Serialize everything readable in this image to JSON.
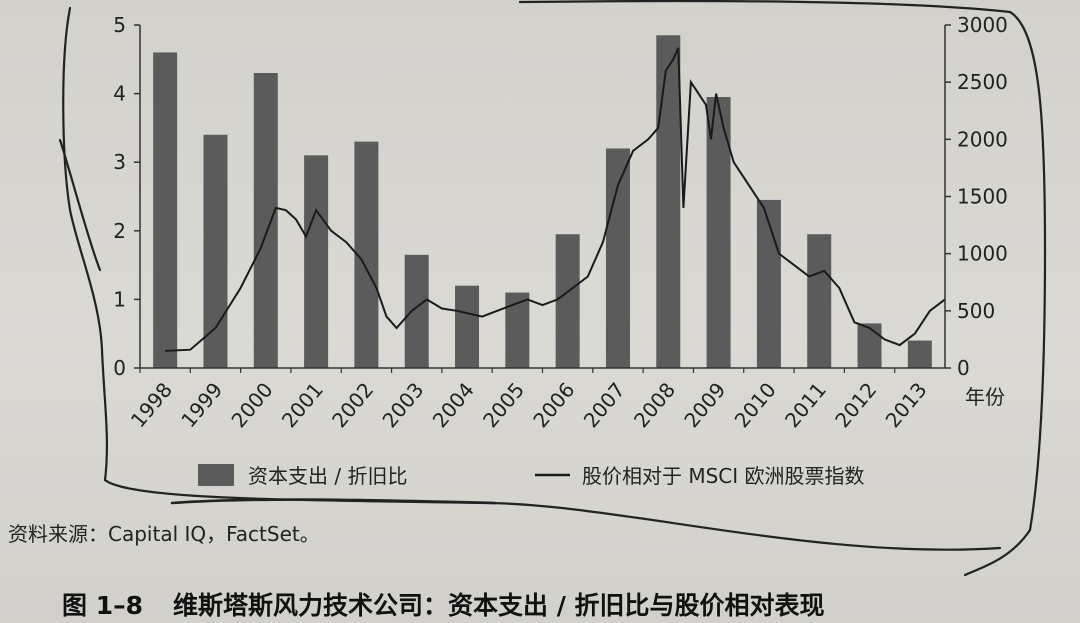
{
  "chart_data": {
    "type": "bar",
    "categories": [
      "1998",
      "1999",
      "2000",
      "2001",
      "2002",
      "2003",
      "2004",
      "2005",
      "2006",
      "2007",
      "2008",
      "2009",
      "2010",
      "2011",
      "2012",
      "2013"
    ],
    "series": [
      {
        "name": "资本支出 / 折旧比",
        "type": "bar",
        "axis": "left",
        "values": [
          4.6,
          3.4,
          4.3,
          3.1,
          3.3,
          1.65,
          1.2,
          1.1,
          1.95,
          3.2,
          4.85,
          3.95,
          2.45,
          1.95,
          0.65,
          0.4
        ]
      },
      {
        "name": "股价相对于 MSCI 欧洲股票指数",
        "type": "line",
        "axis": "right",
        "x": [
          1998.0,
          1998.5,
          1999.0,
          1999.5,
          1999.9,
          2000.2,
          2000.4,
          2000.6,
          2000.8,
          2001.0,
          2001.3,
          2001.6,
          2001.9,
          2002.2,
          2002.4,
          2002.6,
          2002.9,
          2003.2,
          2003.5,
          2003.8,
          2004.0,
          2004.3,
          2004.6,
          2004.9,
          2005.2,
          2005.5,
          2005.8,
          2006.1,
          2006.4,
          2006.7,
          2007.0,
          2007.3,
          2007.6,
          2007.8,
          2007.95,
          2008.1,
          2008.2,
          2008.3,
          2008.45,
          2008.6,
          2008.75,
          2008.85,
          2008.95,
          2009.1,
          2009.3,
          2009.6,
          2009.9,
          2010.2,
          2010.5,
          2010.8,
          2011.1,
          2011.4,
          2011.7,
          2012.0,
          2012.3,
          2012.6,
          2012.9,
          2013.2,
          2013.5
        ],
        "values": [
          150,
          160,
          350,
          700,
          1050,
          1400,
          1380,
          1300,
          1150,
          1380,
          1200,
          1100,
          950,
          700,
          450,
          350,
          500,
          600,
          520,
          500,
          480,
          450,
          500,
          550,
          600,
          550,
          600,
          700,
          800,
          1100,
          1600,
          1900,
          2000,
          2100,
          2600,
          2700,
          2800,
          1400,
          2500,
          2400,
          2300,
          2000,
          2400,
          2100,
          1800,
          1600,
          1400,
          1000,
          900,
          800,
          850,
          700,
          400,
          350,
          250,
          200,
          300,
          500,
          600
        ]
      }
    ],
    "ylim_left": [
      0,
      5
    ],
    "yticks_left": [
      "0",
      "1",
      "2",
      "3",
      "4",
      "5"
    ],
    "ylim_right": [
      0,
      3000
    ],
    "yticks_right": [
      "0",
      "500",
      "1000",
      "1500",
      "2000",
      "2500",
      "3000"
    ],
    "xlabel": "年份"
  },
  "source_text": "资料来源：Capital IQ，FactSet。",
  "caption": {
    "label": "图 1–8",
    "text": "维斯塔斯风力技术公司：资本支出 / 折旧比与股价相对表现"
  }
}
